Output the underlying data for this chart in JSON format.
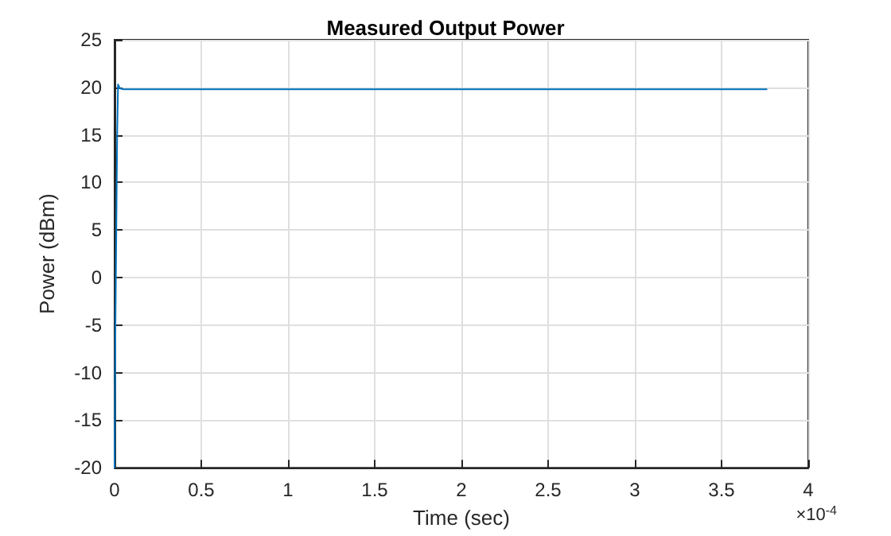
{
  "chart_data": {
    "type": "line",
    "title": "Measured Output Power",
    "xlabel": "Time (sec)",
    "ylabel": "Power (dBm)",
    "annotations": [
      "×10$^{-4}$"
    ],
    "x": [
      0,
      0.005,
      0.01,
      0.015,
      0.02,
      0.03,
      0.05,
      0.5,
      1,
      1.5,
      2,
      2.5,
      3,
      3.5,
      3.76
    ],
    "series": [
      {
        "color": "#0072bd",
        "values": [
          -20,
          -5,
          5,
          15,
          20.3,
          19.9,
          19.8,
          19.8,
          19.8,
          19.8,
          19.8,
          19.8,
          19.8,
          19.8,
          19.8
        ]
      }
    ],
    "xlim": [
      0,
      4
    ],
    "xticks": [
      0,
      0.5,
      1,
      1.5,
      2,
      2.5,
      3,
      3.5,
      4
    ],
    "ylim": [
      -20,
      25
    ],
    "yticks": [
      -20,
      -15,
      -10,
      -5,
      0,
      5,
      10,
      15,
      20,
      25
    ],
    "grid": true,
    "marker": "none",
    "line_style": "solid"
  }
}
